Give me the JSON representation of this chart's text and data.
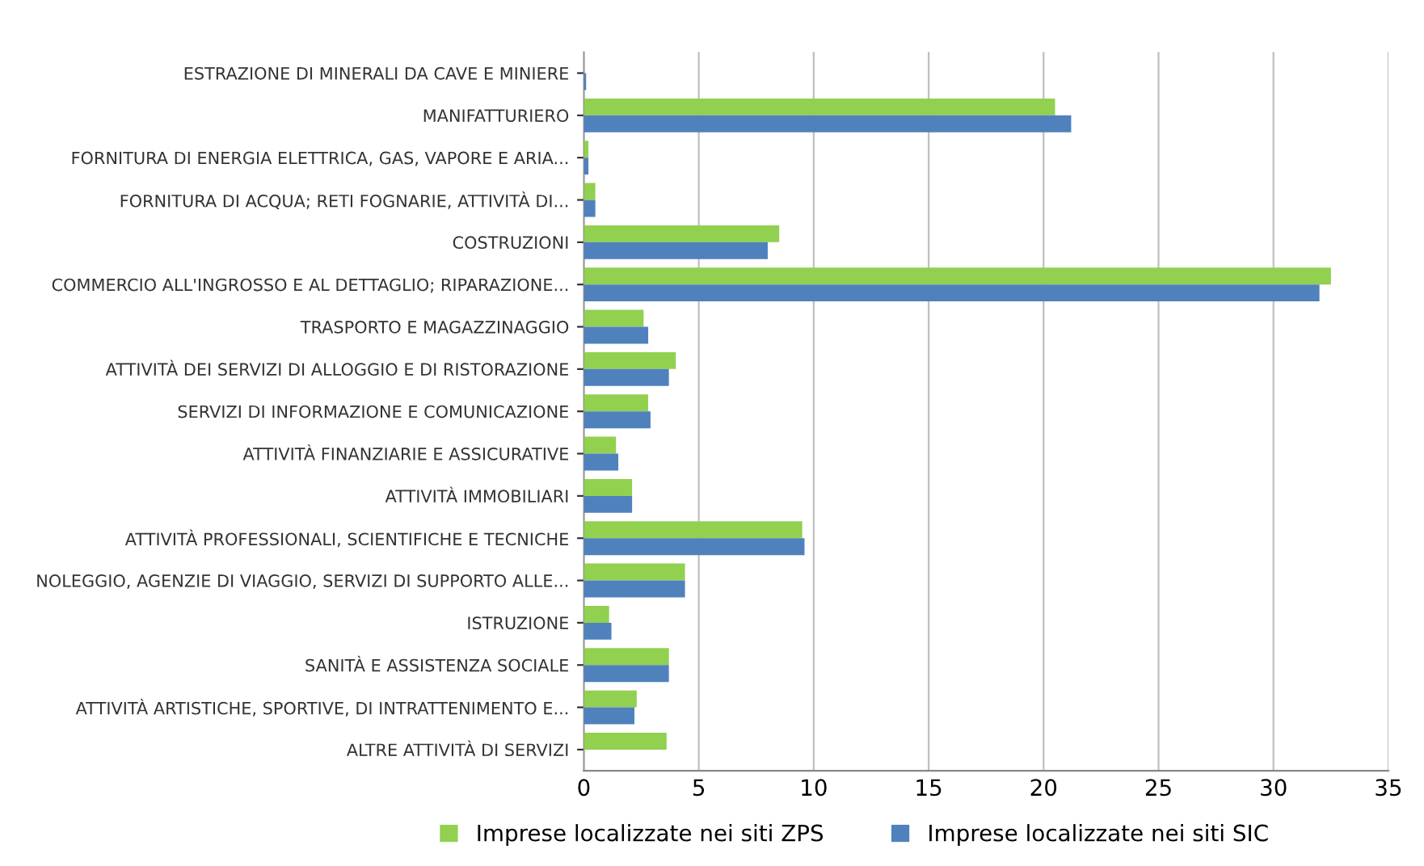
{
  "chart_data": {
    "type": "bar",
    "orientation": "horizontal",
    "categories": [
      "ESTRAZIONE DI MINERALI DA CAVE E MINIERE",
      "MANIFATTURIERO",
      "FORNITURA DI ENERGIA ELETTRICA, GAS, VAPORE E ARIA...",
      "FORNITURA DI ACQUA; RETI FOGNARIE, ATTIVITÀ DI...",
      "COSTRUZIONI",
      "COMMERCIO ALL'INGROSSO E AL DETTAGLIO; RIPARAZIONE...",
      "TRASPORTO E MAGAZZINAGGIO",
      "ATTIVITÀ DEI SERVIZI DI ALLOGGIO E DI RISTORAZIONE",
      "SERVIZI DI INFORMAZIONE E COMUNICAZIONE",
      "ATTIVITÀ FINANZIARIE E ASSICURATIVE",
      "ATTIVITÀ IMMOBILIARI",
      "ATTIVITÀ PROFESSIONALI, SCIENTIFICHE E TECNICHE",
      "NOLEGGIO, AGENZIE DI VIAGGIO, SERVIZI DI SUPPORTO ALLE...",
      "ISTRUZIONE",
      "SANITÀ E ASSISTENZA SOCIALE",
      "ATTIVITÀ ARTISTICHE, SPORTIVE, DI INTRATTENIMENTO E...",
      "ALTRE ATTIVITÀ DI SERVIZI"
    ],
    "series": [
      {
        "name": "Imprese localizzate nei siti ZPS",
        "color": "#92d050",
        "values": [
          0,
          20.5,
          0.2,
          0.5,
          8.5,
          32.5,
          2.6,
          4.0,
          2.8,
          1.4,
          2.1,
          9.5,
          4.4,
          1.1,
          3.7,
          2.3,
          3.6
        ]
      },
      {
        "name": "Imprese localizzate nei siti SIC",
        "color": "#4f81bd",
        "values": [
          0.1,
          21.2,
          0.2,
          0.5,
          8.0,
          32.0,
          2.8,
          3.7,
          2.9,
          1.5,
          2.1,
          9.6,
          4.4,
          1.2,
          3.7,
          2.2,
          null
        ]
      }
    ],
    "xlim": [
      0,
      35
    ],
    "xticks": [
      0,
      5,
      10,
      15,
      20,
      25,
      30,
      35
    ],
    "grid": "x",
    "legend": "bottom"
  }
}
